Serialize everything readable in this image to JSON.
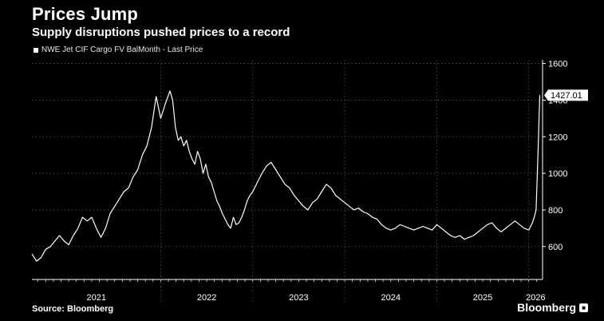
{
  "header": {
    "title": "Prices Jump",
    "subtitle": "Supply disruptions pushed prices to a record"
  },
  "footer": {
    "source": "Source: Bloomberg",
    "brand": "Bloomberg"
  },
  "colors": {
    "background": "#000000",
    "line": "#ffffff",
    "grid": "#555555"
  },
  "chart_data": {
    "type": "line",
    "title": "Prices Jump",
    "subtitle": "Supply disruptions pushed prices to a record",
    "legend": [
      "NWE Jet CIF Cargo FV BalMonth - Last Price"
    ],
    "legend_position": "top-left",
    "xlabel": "",
    "ylabel": "",
    "ylim": [
      420,
      1620
    ],
    "y_ticks": [
      600,
      800,
      1000,
      1200,
      1400,
      1600
    ],
    "y_axis_side": "right",
    "x_range": [
      2020.6,
      2026.15
    ],
    "year_labels": [
      "2021",
      "2022",
      "2023",
      "2024",
      "2025",
      "2026"
    ],
    "year_boundaries": [
      2022.0,
      2023.0,
      2024.0,
      2025.0,
      2026.0
    ],
    "grid": "horizontal dotted",
    "last_value_label": "1427.01",
    "series": [
      {
        "name": "NWE Jet CIF Cargo FV BalMonth - Last Price",
        "x": [
          2020.6,
          2020.65,
          2020.7,
          2020.75,
          2020.8,
          2020.85,
          2020.9,
          2020.95,
          2021.0,
          2021.05,
          2021.1,
          2021.15,
          2021.2,
          2021.25,
          2021.3,
          2021.35,
          2021.4,
          2021.45,
          2021.5,
          2021.55,
          2021.6,
          2021.65,
          2021.7,
          2021.75,
          2021.8,
          2021.85,
          2021.9,
          2021.95,
          2022.0,
          2022.05,
          2022.1,
          2022.13,
          2022.16,
          2022.19,
          2022.22,
          2022.25,
          2022.28,
          2022.31,
          2022.34,
          2022.37,
          2022.4,
          2022.43,
          2022.46,
          2022.49,
          2022.52,
          2022.55,
          2022.58,
          2022.61,
          2022.64,
          2022.67,
          2022.7,
          2022.73,
          2022.76,
          2022.79,
          2022.82,
          2022.85,
          2022.88,
          2022.91,
          2022.94,
          2022.97,
          2023.0,
          2023.05,
          2023.1,
          2023.15,
          2023.2,
          2023.25,
          2023.3,
          2023.35,
          2023.4,
          2023.45,
          2023.5,
          2023.55,
          2023.6,
          2023.65,
          2023.7,
          2023.75,
          2023.8,
          2023.85,
          2023.9,
          2023.95,
          2024.0,
          2024.05,
          2024.1,
          2024.15,
          2024.2,
          2024.25,
          2024.3,
          2024.35,
          2024.4,
          2024.45,
          2024.5,
          2024.55,
          2024.6,
          2024.65,
          2024.7,
          2024.75,
          2024.8,
          2024.85,
          2024.9,
          2024.95,
          2025.0,
          2025.05,
          2025.1,
          2025.15,
          2025.2,
          2025.25,
          2025.3,
          2025.35,
          2025.4,
          2025.45,
          2025.5,
          2025.55,
          2025.6,
          2025.65,
          2025.7,
          2025.75,
          2025.8,
          2025.85,
          2025.9,
          2025.95,
          2026.0,
          2026.02,
          2026.04,
          2026.06,
          2026.08,
          2026.1,
          2026.12
        ],
        "y": [
          560,
          520,
          540,
          585,
          600,
          630,
          660,
          630,
          610,
          660,
          700,
          760,
          740,
          760,
          700,
          650,
          700,
          780,
          820,
          860,
          900,
          920,
          980,
          1020,
          1100,
          1150,
          1250,
          1420,
          1300,
          1380,
          1450,
          1400,
          1250,
          1180,
          1200,
          1150,
          1180,
          1120,
          1080,
          1050,
          1120,
          1080,
          1000,
          1050,
          980,
          950,
          900,
          850,
          820,
          780,
          750,
          720,
          700,
          760,
          720,
          730,
          760,
          800,
          850,
          880,
          900,
          950,
          1000,
          1040,
          1060,
          1020,
          980,
          940,
          920,
          880,
          850,
          820,
          800,
          840,
          860,
          900,
          940,
          920,
          880,
          860,
          840,
          820,
          800,
          810,
          790,
          780,
          760,
          750,
          720,
          700,
          690,
          700,
          720,
          710,
          700,
          690,
          700,
          710,
          700,
          690,
          720,
          700,
          680,
          660,
          650,
          660,
          640,
          650,
          660,
          680,
          700,
          720,
          730,
          700,
          680,
          700,
          720,
          740,
          720,
          700,
          690,
          710,
          730,
          760,
          800,
          1100,
          1427.01
        ]
      }
    ]
  }
}
